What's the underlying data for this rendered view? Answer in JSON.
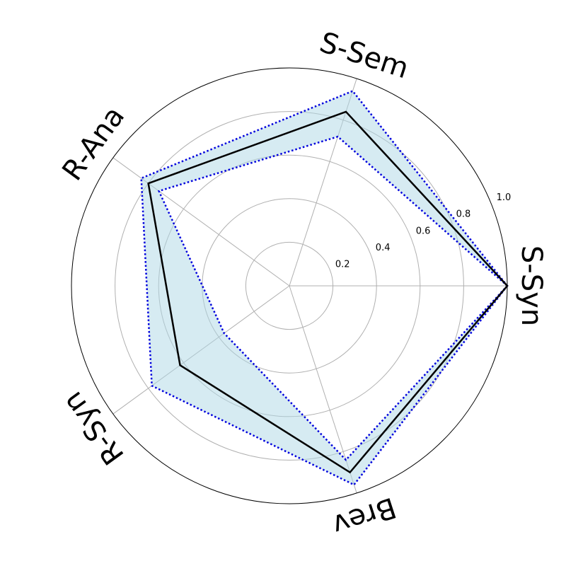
{
  "chart_data": {
    "type": "radar",
    "categories": [
      "S-Syn",
      "S-Sem",
      "R-Ana",
      "R-Syn",
      "Brev"
    ],
    "rlim": [
      0,
      1.0
    ],
    "rticks": [
      0.2,
      0.4,
      0.6,
      0.8,
      1.0
    ],
    "rtick_labels": [
      "0.2",
      "0.4",
      "0.6",
      "0.8",
      "1.0"
    ],
    "grid": true,
    "series": [
      {
        "role": "mean",
        "values": [
          1.0,
          0.84,
          0.8,
          0.62,
          0.9
        ],
        "color": "#000000",
        "linestyle": "solid"
      },
      {
        "role": "upper",
        "values": [
          1.0,
          0.94,
          0.84,
          0.78,
          0.96
        ],
        "color": "#0000dd",
        "linestyle": "dotted"
      },
      {
        "role": "lower",
        "values": [
          1.0,
          0.72,
          0.74,
          0.37,
          0.84
        ],
        "color": "#0000dd",
        "linestyle": "dotted"
      }
    ],
    "band_fill": "#add8e6"
  }
}
